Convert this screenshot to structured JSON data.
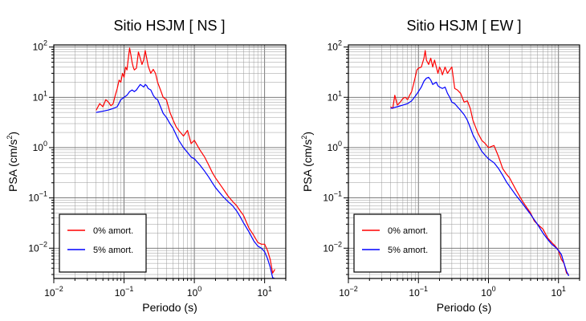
{
  "chart_data": [
    {
      "type": "line",
      "title": "Sitio HSJM [ NS ]",
      "xlabel": "Periodo (s)",
      "ylabel_main": "PSA (cm/s",
      "ylabel_sup": "2",
      "ylabel_end": ")",
      "xscale": "log",
      "yscale": "log",
      "xlim": [
        0.01,
        20
      ],
      "ylim": [
        0.0025,
        110
      ],
      "grid": true,
      "legend_position": "bottom-left",
      "x_ticks": [
        {
          "base": "10",
          "exp": "−2"
        },
        {
          "base": "10",
          "exp": "−1"
        },
        {
          "base": "10",
          "exp": "0"
        },
        {
          "base": "10",
          "exp": "1"
        }
      ],
      "y_ticks": [
        {
          "base": "10",
          "exp": "−2"
        },
        {
          "base": "10",
          "exp": "−1"
        },
        {
          "base": "10",
          "exp": "0"
        },
        {
          "base": "10",
          "exp": "1"
        },
        {
          "base": "10",
          "exp": "2"
        }
      ],
      "series": [
        {
          "name": "0% amort.",
          "color": "#ff0000",
          "x": [
            0.04,
            0.045,
            0.05,
            0.055,
            0.06,
            0.065,
            0.07,
            0.075,
            0.08,
            0.085,
            0.09,
            0.095,
            0.1,
            0.105,
            0.11,
            0.115,
            0.12,
            0.125,
            0.13,
            0.135,
            0.14,
            0.15,
            0.16,
            0.17,
            0.18,
            0.19,
            0.2,
            0.21,
            0.22,
            0.24,
            0.26,
            0.28,
            0.3,
            0.33,
            0.36,
            0.4,
            0.45,
            0.5,
            0.55,
            0.6,
            0.7,
            0.8,
            0.9,
            1.0,
            1.2,
            1.4,
            1.6,
            1.8,
            2.0,
            2.5,
            3.0,
            3.5,
            4.0,
            4.5,
            5.0,
            6.0,
            7.0,
            8.0,
            9.0,
            10.0,
            11.0,
            12.0,
            13.0,
            14.0
          ],
          "y": [
            5.5,
            7.5,
            6.5,
            9.0,
            8.0,
            6.8,
            7.5,
            11.0,
            15.0,
            22.0,
            20.0,
            30.0,
            25.0,
            40.0,
            35.0,
            60.0,
            95.0,
            70.0,
            50.0,
            40.0,
            35.0,
            38.0,
            80.0,
            60.0,
            45.0,
            55.0,
            85.0,
            60.0,
            42.0,
            30.0,
            36.0,
            30.0,
            20.0,
            14.0,
            10.0,
            9.0,
            5.0,
            3.5,
            2.6,
            2.2,
            1.7,
            2.2,
            1.2,
            1.4,
            0.9,
            0.65,
            0.45,
            0.32,
            0.25,
            0.16,
            0.11,
            0.085,
            0.07,
            0.055,
            0.045,
            0.025,
            0.018,
            0.013,
            0.012,
            0.012,
            0.009,
            0.006,
            0.0032,
            0.0038
          ]
        },
        {
          "name": "5% amort.",
          "color": "#0000ff",
          "x": [
            0.04,
            0.05,
            0.06,
            0.07,
            0.08,
            0.09,
            0.1,
            0.11,
            0.12,
            0.13,
            0.14,
            0.15,
            0.16,
            0.17,
            0.18,
            0.19,
            0.2,
            0.21,
            0.22,
            0.24,
            0.26,
            0.28,
            0.3,
            0.33,
            0.36,
            0.4,
            0.45,
            0.5,
            0.55,
            0.6,
            0.7,
            0.8,
            0.9,
            1.0,
            1.2,
            1.4,
            1.6,
            1.8,
            2.0,
            2.5,
            3.0,
            3.5,
            4.0,
            4.5,
            5.0,
            6.0,
            7.0,
            8.0,
            9.0,
            10.0,
            11.0,
            12.0,
            13.0,
            14.0
          ],
          "y": [
            5.0,
            5.3,
            5.6,
            6.0,
            6.5,
            9.0,
            10.0,
            11.0,
            13.0,
            14.0,
            13.0,
            14.0,
            16.0,
            18.0,
            17.0,
            16.0,
            18.0,
            17.0,
            15.0,
            14.0,
            11.0,
            9.5,
            9.0,
            6.5,
            4.8,
            4.0,
            3.0,
            2.4,
            1.8,
            1.4,
            1.0,
            0.8,
            0.65,
            0.6,
            0.45,
            0.34,
            0.26,
            0.2,
            0.16,
            0.11,
            0.085,
            0.07,
            0.055,
            0.042,
            0.032,
            0.021,
            0.014,
            0.011,
            0.01,
            0.0085,
            0.0062,
            0.0042,
            0.0026,
            0.0025
          ]
        }
      ]
    },
    {
      "type": "line",
      "title": "Sitio HSJM [ EW ]",
      "xlabel": "Periodo (s)",
      "ylabel_main": "PSA (cm/s",
      "ylabel_sup": "2",
      "ylabel_end": ")",
      "xscale": "log",
      "yscale": "log",
      "xlim": [
        0.01,
        20
      ],
      "ylim": [
        0.0025,
        110
      ],
      "grid": true,
      "legend_position": "bottom-left",
      "x_ticks": [
        {
          "base": "10",
          "exp": "−2"
        },
        {
          "base": "10",
          "exp": "−1"
        },
        {
          "base": "10",
          "exp": "0"
        },
        {
          "base": "10",
          "exp": "1"
        }
      ],
      "y_ticks": [
        {
          "base": "10",
          "exp": "−2"
        },
        {
          "base": "10",
          "exp": "−1"
        },
        {
          "base": "10",
          "exp": "0"
        },
        {
          "base": "10",
          "exp": "1"
        },
        {
          "base": "10",
          "exp": "2"
        }
      ],
      "series": [
        {
          "name": "0% amort.",
          "color": "#ff0000",
          "x": [
            0.04,
            0.043,
            0.046,
            0.05,
            0.055,
            0.06,
            0.065,
            0.07,
            0.075,
            0.08,
            0.085,
            0.09,
            0.095,
            0.1,
            0.11,
            0.12,
            0.125,
            0.13,
            0.14,
            0.15,
            0.16,
            0.17,
            0.18,
            0.19,
            0.2,
            0.21,
            0.22,
            0.24,
            0.26,
            0.28,
            0.3,
            0.33,
            0.36,
            0.4,
            0.45,
            0.5,
            0.55,
            0.6,
            0.7,
            0.8,
            0.9,
            1.0,
            1.2,
            1.4,
            1.6,
            1.8,
            2.0,
            2.5,
            3.0,
            3.5,
            4.0,
            4.5,
            5.0,
            6.0,
            7.0,
            8.0,
            9.0,
            10.0,
            11.0,
            12.0,
            13.0,
            14.0
          ],
          "y": [
            6.5,
            6.0,
            11.0,
            7.0,
            8.0,
            9.5,
            10.0,
            9.0,
            11.0,
            13.0,
            18.0,
            25.0,
            35.0,
            38.0,
            40.0,
            60.0,
            85.0,
            55.0,
            45.0,
            60.0,
            40.0,
            55.0,
            40.0,
            30.0,
            40.0,
            35.0,
            28.0,
            40.0,
            30.0,
            35.0,
            40.0,
            15.0,
            14.0,
            12.0,
            8.0,
            8.5,
            6.0,
            3.5,
            2.0,
            1.4,
            1.2,
            1.0,
            1.1,
            0.65,
            0.38,
            0.3,
            0.25,
            0.14,
            0.09,
            0.065,
            0.05,
            0.035,
            0.03,
            0.024,
            0.016,
            0.013,
            0.011,
            0.009,
            0.006,
            0.005,
            0.0032,
            0.003
          ]
        },
        {
          "name": "5% amort.",
          "color": "#0000ff",
          "x": [
            0.04,
            0.05,
            0.06,
            0.07,
            0.08,
            0.09,
            0.1,
            0.11,
            0.12,
            0.13,
            0.14,
            0.15,
            0.16,
            0.17,
            0.18,
            0.19,
            0.2,
            0.22,
            0.24,
            0.26,
            0.28,
            0.3,
            0.33,
            0.36,
            0.4,
            0.45,
            0.5,
            0.55,
            0.6,
            0.7,
            0.8,
            0.9,
            1.0,
            1.2,
            1.4,
            1.6,
            1.8,
            2.0,
            2.5,
            3.0,
            3.5,
            4.0,
            4.5,
            5.0,
            6.0,
            7.0,
            8.0,
            9.0,
            10.0,
            11.0,
            12.0,
            13.0,
            14.0
          ],
          "y": [
            6.0,
            6.5,
            7.0,
            7.5,
            8.5,
            10.5,
            13.0,
            16.0,
            21.0,
            24.0,
            25.0,
            22.0,
            18.0,
            19.0,
            20.0,
            17.0,
            16.0,
            15.0,
            16.0,
            12.0,
            10.0,
            8.0,
            7.5,
            6.5,
            5.5,
            4.5,
            3.5,
            2.5,
            1.8,
            1.2,
            0.85,
            0.7,
            0.6,
            0.5,
            0.38,
            0.28,
            0.21,
            0.17,
            0.11,
            0.08,
            0.06,
            0.047,
            0.037,
            0.03,
            0.02,
            0.015,
            0.012,
            0.0105,
            0.009,
            0.0075,
            0.005,
            0.0035,
            0.0028
          ]
        }
      ]
    }
  ]
}
